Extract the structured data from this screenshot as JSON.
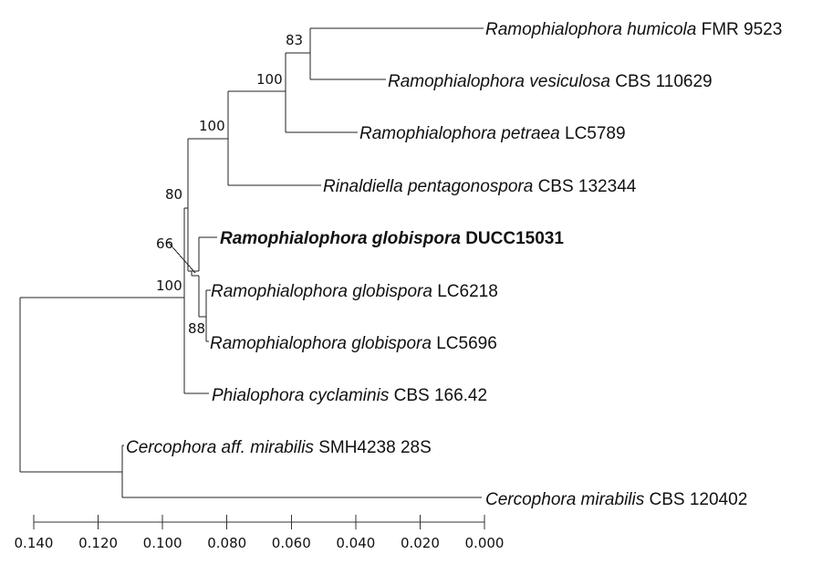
{
  "tree": {
    "taxa": [
      {
        "id": "hum",
        "genus": "Ramophialophora humicola",
        "strain": "FMR 9523"
      },
      {
        "id": "ves",
        "genus": "Ramophialophora vesiculosa",
        "strain": "CBS 110629"
      },
      {
        "id": "pet",
        "genus": "Ramophialophora petraea",
        "strain": "LC5789"
      },
      {
        "id": "rin",
        "genus": "Rinaldiella pentagonospora",
        "strain": "CBS 132344"
      },
      {
        "id": "glo_d",
        "genus": "Ramophialophora globispora",
        "strain": "DUCC15031",
        "highlight": true
      },
      {
        "id": "glo_6",
        "genus": "Ramophialophora globispora",
        "strain": "LC6218"
      },
      {
        "id": "glo_5",
        "genus": "Ramophialophora globispora",
        "strain": "LC5696"
      },
      {
        "id": "phi",
        "genus": "Phialophora cyclaminis",
        "strain": "CBS 166.42"
      },
      {
        "id": "cer_a",
        "genus": "Cercophora aff. mirabilis",
        "strain": "SMH4238 28S"
      },
      {
        "id": "cer_m",
        "genus": "Cercophora mirabilis",
        "strain": "CBS 120402"
      }
    ],
    "support_values": [
      {
        "node": "n_hum_ves",
        "value": "83"
      },
      {
        "node": "n_ves_pet",
        "value": "100"
      },
      {
        "node": "n_pet_rin",
        "value": "100"
      },
      {
        "node": "n_rin_glo",
        "value": "80"
      },
      {
        "node": "n_glo_d",
        "value": "66"
      },
      {
        "node": "n_ingroup",
        "value": "100"
      },
      {
        "node": "n_glo_lc",
        "value": "88"
      }
    ]
  },
  "scale_axis": {
    "ticks": [
      "0.140",
      "0.120",
      "0.100",
      "0.080",
      "0.060",
      "0.040",
      "0.020",
      "0.000"
    ],
    "min": 0.0,
    "max": 0.14
  }
}
